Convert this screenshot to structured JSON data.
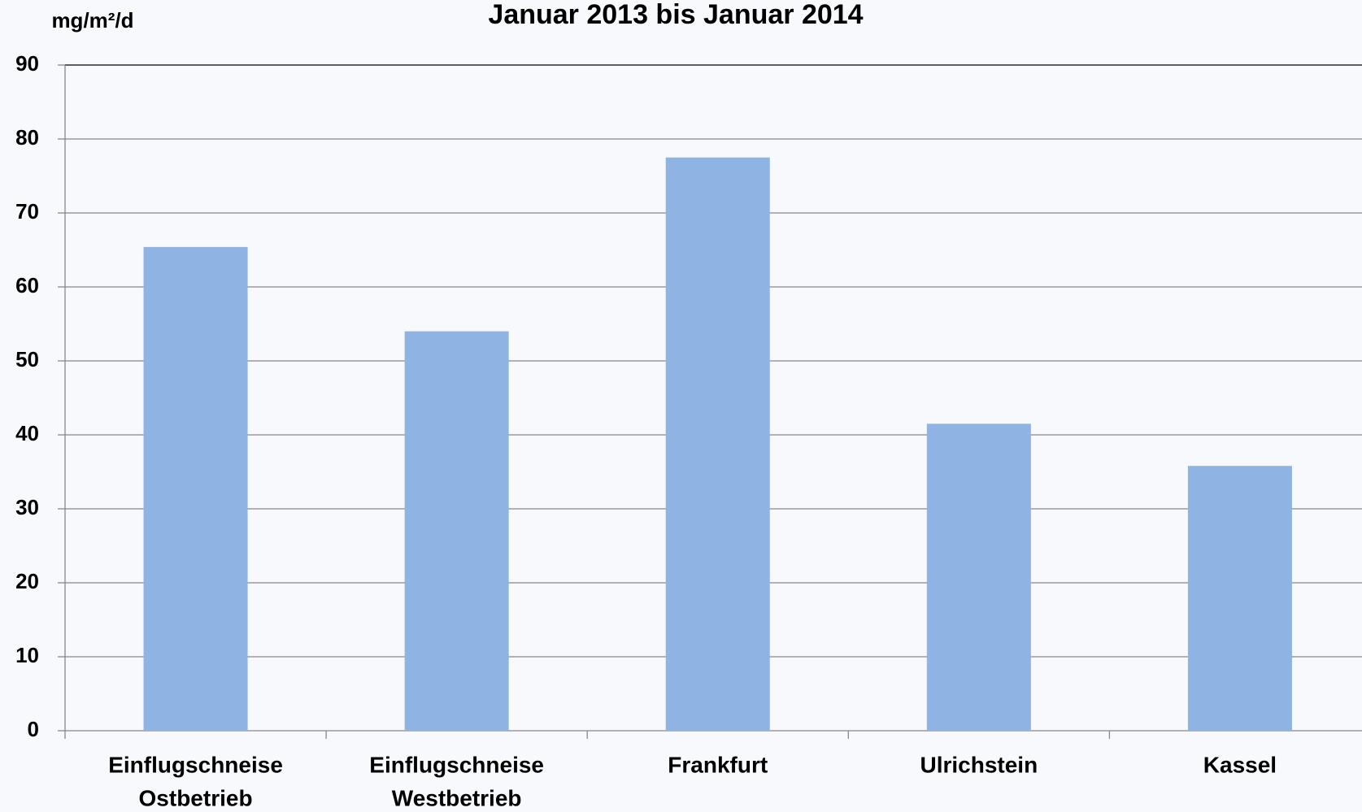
{
  "chart_data": {
    "type": "bar",
    "title": "Januar 2013 bis Januar 2014",
    "y_label": "mg/m²/d",
    "categories": [
      [
        "Einflugschneise",
        "Ostbetrieb"
      ],
      [
        "Einflugschneise",
        "Westbetrieb"
      ],
      [
        "Frankfurt"
      ],
      [
        "Ulrichstein"
      ],
      [
        "Kassel"
      ]
    ],
    "values": [
      65.4,
      54.0,
      77.5,
      41.5,
      35.8
    ],
    "color": "#8fb3e2",
    "ylim": [
      0,
      90
    ],
    "yticks": [
      0,
      10,
      20,
      30,
      40,
      50,
      60,
      70,
      80,
      90
    ],
    "grid": true
  }
}
